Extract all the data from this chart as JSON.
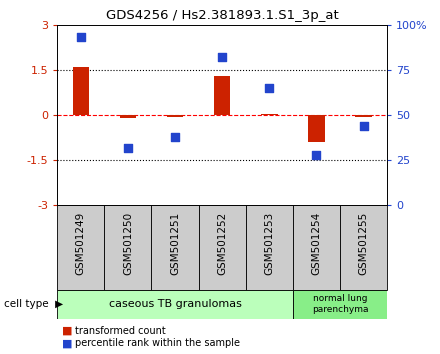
{
  "title": "GDS4256 / Hs2.381893.1.S1_3p_at",
  "samples": [
    "GSM501249",
    "GSM501250",
    "GSM501251",
    "GSM501252",
    "GSM501253",
    "GSM501254",
    "GSM501255"
  ],
  "transformed_count": [
    1.6,
    -0.1,
    -0.05,
    1.3,
    0.05,
    -0.9,
    -0.05
  ],
  "percentile_rank": [
    93,
    32,
    38,
    82,
    65,
    28,
    44
  ],
  "bar_color": "#cc2200",
  "dot_color": "#2244cc",
  "group1_indices": [
    0,
    1,
    2,
    3,
    4
  ],
  "group2_indices": [
    5,
    6
  ],
  "group1_label": "caseous TB granulomas",
  "group2_label": "normal lung\nparenchyma",
  "group1_color": "#bbffbb",
  "group2_color": "#88ee88",
  "cell_type_label": "cell type",
  "ylim_left": [
    -3,
    3
  ],
  "ylim_right": [
    0,
    100
  ],
  "yticks_left": [
    -3,
    -1.5,
    0,
    1.5,
    3
  ],
  "yticks_right": [
    0,
    25,
    50,
    75,
    100
  ],
  "yticklabels_right": [
    "0",
    "25",
    "50",
    "75",
    "100%"
  ],
  "legend_bar_label": "transformed count",
  "legend_dot_label": "percentile rank within the sample",
  "bar_width": 0.35,
  "sample_box_color": "#cccccc",
  "title_fontsize": 9.5,
  "tick_fontsize": 8,
  "label_fontsize": 7.5
}
